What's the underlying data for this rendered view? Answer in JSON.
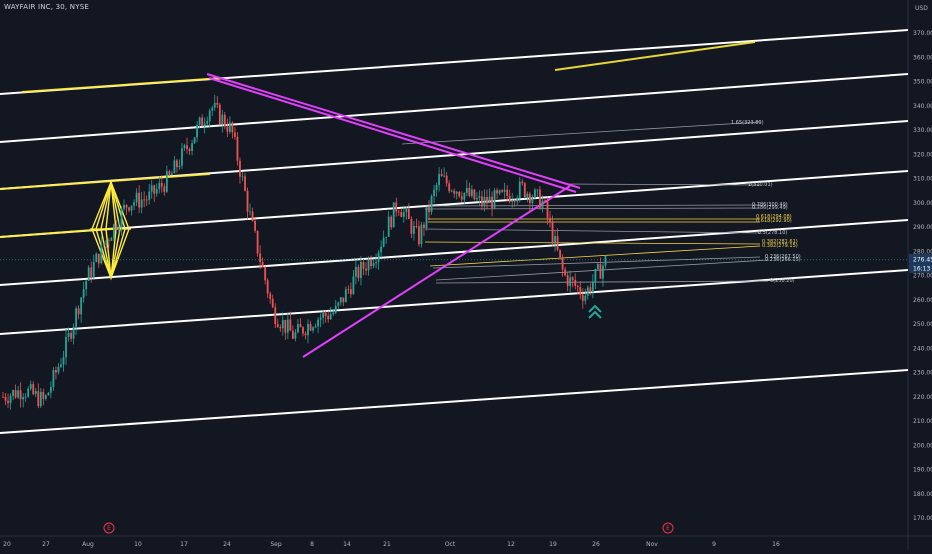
{
  "header": {
    "symbol_title": "WAYFAIR INC, 30, NYSE",
    "currency": "USD"
  },
  "colors": {
    "background": "#131722",
    "up": "#26a69a",
    "down": "#ef5350",
    "channel": "#ffffff",
    "highlight": "#ffeb3b",
    "triangle": "#e040fb",
    "fib_gray": "#9598a1",
    "fib_yellow": "#f7d64a",
    "arrow": "#26a69a",
    "axis_text": "#b2b5be",
    "event_marker": "#f23645"
  },
  "price_axis": {
    "min": 165,
    "max": 375,
    "ticks": [
      "370.00",
      "360.00",
      "350.00",
      "340.00",
      "330.00",
      "320.00",
      "310.00",
      "300.00",
      "290.00",
      "280.00",
      "270.00",
      "260.00",
      "250.00",
      "240.00",
      "230.00",
      "220.00",
      "210.00",
      "200.00",
      "190.00",
      "180.00",
      "170.00"
    ],
    "last_price": "276.45",
    "countdown": "16:13"
  },
  "time_axis": {
    "labels": [
      "20",
      "27",
      "Aug",
      "10",
      "17",
      "24",
      "Sep",
      "8",
      "14",
      "21",
      "Oct",
      "12",
      "19",
      "26",
      "Nov",
      "9",
      "16"
    ]
  },
  "event_markers": [
    "E",
    "E"
  ],
  "icons": {
    "signal": "double-chevron-up-icon"
  },
  "chart_data": {
    "type": "candlestick",
    "title": "WAYFAIR INC, 30, NYSE",
    "series": [
      {
        "name": "price path",
        "x": [
          "Jul 18",
          "Jul 22",
          "Jul 27",
          "Jul 31",
          "Aug 3",
          "Aug 6",
          "Aug 10",
          "Aug 13",
          "Aug 17",
          "Aug 20",
          "Aug 24",
          "Aug 27",
          "Aug 31",
          "Sep 3",
          "Sep 8",
          "Sep 10",
          "Sep 14",
          "Sep 17",
          "Sep 21",
          "Sep 24",
          "Sep 28",
          "Oct 1",
          "Oct 5",
          "Oct 8",
          "Oct 12",
          "Oct 15",
          "Oct 19",
          "Oct 22",
          "Oct 25",
          "Oct 27"
        ],
        "values": [
          220,
          223,
          218,
          240,
          268,
          285,
          300,
          302,
          310,
          325,
          340,
          330,
          290,
          255,
          245,
          252,
          255,
          270,
          280,
          300,
          285,
          310,
          305,
          300,
          302,
          306,
          300,
          270,
          262,
          276
        ]
      }
    ],
    "ylim": [
      165,
      375
    ],
    "annotations": {
      "fib_labels": [
        "1.65(323.89)",
        "1(310.01)",
        "0.786(300.49)",
        "0.786(299.49)",
        "0.618(294.08)",
        "0.618(292.90)",
        "0.5(278.10)",
        "0.382(281.61)",
        "0.382(279.15)",
        "0.236(267.50)",
        "0.236(266.15)",
        "0(258.20)"
      ]
    }
  }
}
